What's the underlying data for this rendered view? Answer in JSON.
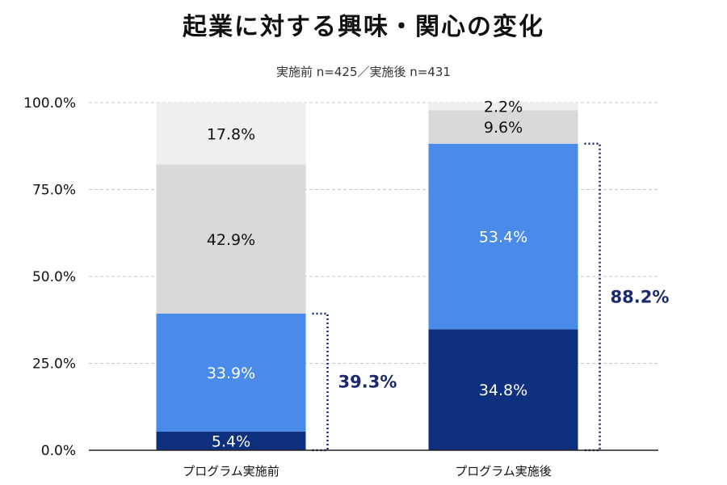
{
  "chart_data": {
    "type": "bar",
    "stacked": true,
    "title": "起業に対する興味・関心の変化",
    "subtitle": "実施前 n=425／実施後 n=431",
    "categories": [
      "プログラム実施前",
      "プログラム実施後"
    ],
    "series": [
      {
        "values": [
          5.4,
          34.8
        ],
        "labels": [
          "5.4%",
          "34.8%"
        ],
        "color": "#0f2f7f",
        "label_color": "#ffffff"
      },
      {
        "values": [
          33.9,
          53.4
        ],
        "labels": [
          "33.9%",
          "53.4%"
        ],
        "color": "#4a8ae8",
        "label_color": "#ffffff"
      },
      {
        "values": [
          42.9,
          9.6
        ],
        "labels": [
          "42.9%",
          "9.6%"
        ],
        "color": "#d9d9d9",
        "label_color": "#111111"
      },
      {
        "values": [
          17.8,
          2.2
        ],
        "labels": [
          "17.8%",
          "2.2%"
        ],
        "color": "#efefef",
        "label_color": "#111111"
      }
    ],
    "brackets": [
      {
        "category_index": 0,
        "from": 0,
        "to": 39.3,
        "label": "39.3%"
      },
      {
        "category_index": 1,
        "from": 0,
        "to": 88.2,
        "label": "88.2%"
      }
    ],
    "bracket_color": "#1a2a6c",
    "ylim": [
      0,
      100
    ],
    "yticks": [
      0,
      25,
      50,
      75,
      100
    ],
    "ytick_labels": [
      "0.0%",
      "25.0%",
      "50.0%",
      "75.0%",
      "100.0%"
    ],
    "grid": true,
    "legend": "none",
    "xlabel": "",
    "ylabel": ""
  }
}
